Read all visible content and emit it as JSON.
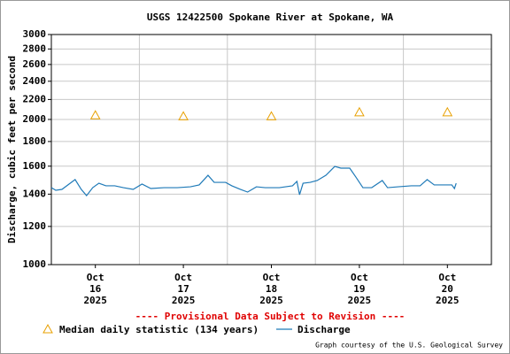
{
  "chart_data": {
    "type": "line",
    "title": "USGS 12422500 Spokane River at Spokane, WA",
    "y_label": "Discharge, cubic feet per second",
    "annotation": "---- Provisional Data Subject to Revision ----",
    "credit": "Graph courtesy of the U.S. Geological Survey",
    "ylog": true,
    "grid": true,
    "ylim": [
      1000,
      3000
    ],
    "yticks": [
      1000,
      1200,
      1400,
      1600,
      1800,
      2000,
      2200,
      2400,
      2600,
      2800,
      3000
    ],
    "xlim": [
      16,
      21
    ],
    "xticks": [
      {
        "value": 16.5,
        "label": "Oct\n16\n2025"
      },
      {
        "value": 17.5,
        "label": "Oct\n17\n2025"
      },
      {
        "value": 18.5,
        "label": "Oct\n18\n2025"
      },
      {
        "value": 19.5,
        "label": "Oct\n19\n2025"
      },
      {
        "value": 20.5,
        "label": "Oct\n20\n2025"
      }
    ],
    "series": [
      {
        "name": "Median daily statistic (134 years)",
        "color": "#e8a000",
        "marker": "triangle",
        "x": [
          16.5,
          17.5,
          18.5,
          19.5,
          20.5
        ],
        "values": [
          2040,
          2030,
          2030,
          2070,
          2070
        ]
      },
      {
        "name": "Discharge",
        "color": "#1f7ab8",
        "marker": "line",
        "x": [
          16.0,
          16.05,
          16.12,
          16.27,
          16.34,
          16.4,
          16.47,
          16.54,
          16.62,
          16.72,
          16.82,
          16.93,
          17.03,
          17.13,
          17.28,
          17.43,
          17.58,
          17.68,
          17.78,
          17.85,
          17.98,
          18.05,
          18.15,
          18.23,
          18.33,
          18.43,
          18.59,
          18.74,
          18.79,
          18.82,
          18.86,
          18.94,
          19.02,
          19.12,
          19.22,
          19.29,
          19.39,
          19.46,
          19.54,
          19.64,
          19.76,
          19.82,
          19.94,
          20.09,
          20.19,
          20.27,
          20.35,
          20.45,
          20.55,
          20.58,
          20.6
        ],
        "values": [
          1444,
          1426,
          1432,
          1501,
          1432,
          1390,
          1444,
          1475,
          1457,
          1457,
          1444,
          1432,
          1469,
          1438,
          1444,
          1444,
          1450,
          1463,
          1532,
          1481,
          1481,
          1457,
          1432,
          1414,
          1450,
          1444,
          1444,
          1457,
          1488,
          1396,
          1475,
          1481,
          1494,
          1532,
          1598,
          1585,
          1585,
          1519,
          1444,
          1444,
          1494,
          1444,
          1450,
          1457,
          1457,
          1501,
          1463,
          1463,
          1463,
          1438,
          1475
        ]
      }
    ]
  }
}
